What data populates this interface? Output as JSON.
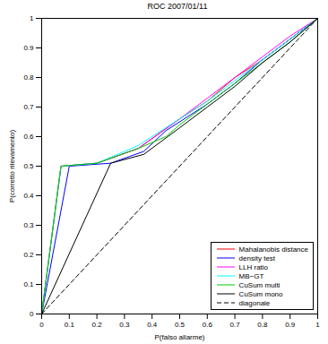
{
  "chart_data": {
    "type": "line",
    "title": "ROC 2007/01/11",
    "x_label": "P(falso allarme)",
    "y_label": "P(corretto rilevamento)",
    "xlim": [
      0,
      1
    ],
    "ylim": [
      0,
      1
    ],
    "xticks": [
      0,
      0.1,
      0.2,
      0.3,
      0.4,
      0.5,
      0.6,
      0.7,
      0.8,
      0.9,
      1
    ],
    "yticks": [
      0,
      0.1,
      0.2,
      0.3,
      0.4,
      0.5,
      0.6,
      0.7,
      0.8,
      0.9,
      1
    ],
    "grid": false,
    "legend": "bottom-right",
    "series": [
      {
        "name": "Mahalanobis distance",
        "color": "#ff0000",
        "line_style": "solid",
        "x": [
          0,
          0.07,
          0.2,
          0.35,
          0.5,
          0.6,
          0.7,
          0.8,
          0.9,
          1
        ],
        "values": [
          0,
          0.5,
          0.51,
          0.56,
          0.66,
          0.72,
          0.8,
          0.86,
          0.93,
          1
        ]
      },
      {
        "name": "density test",
        "color": "#0000ff",
        "line_style": "solid",
        "x": [
          0,
          0.1,
          0.25,
          0.37,
          0.45,
          0.6,
          0.7,
          0.8,
          0.9,
          1
        ],
        "values": [
          0,
          0.5,
          0.51,
          0.55,
          0.62,
          0.71,
          0.78,
          0.86,
          0.93,
          1
        ]
      },
      {
        "name": "LLH ratio",
        "color": "#ff00ff",
        "line_style": "solid",
        "x": [
          0,
          0.07,
          0.2,
          0.35,
          0.5,
          0.6,
          0.7,
          0.8,
          0.9,
          1
        ],
        "values": [
          0,
          0.5,
          0.51,
          0.56,
          0.66,
          0.73,
          0.8,
          0.87,
          0.94,
          1
        ]
      },
      {
        "name": "MB−GT",
        "color": "#00ffff",
        "line_style": "solid",
        "x": [
          0,
          0.07,
          0.2,
          0.35,
          0.45,
          0.6,
          0.7,
          0.8,
          0.9,
          1
        ],
        "values": [
          0,
          0.5,
          0.51,
          0.57,
          0.63,
          0.72,
          0.79,
          0.86,
          0.93,
          1
        ]
      },
      {
        "name": "CuSum multi",
        "color": "#00cc00",
        "line_style": "solid",
        "x": [
          0,
          0.07,
          0.2,
          0.35,
          0.45,
          0.5,
          0.6,
          0.7,
          0.8,
          0.9,
          1
        ],
        "values": [
          0,
          0.5,
          0.51,
          0.56,
          0.6,
          0.64,
          0.71,
          0.78,
          0.85,
          0.92,
          1
        ]
      },
      {
        "name": "CuSum mono",
        "color": "#000000",
        "line_style": "solid",
        "x": [
          0,
          0.25,
          0.37,
          0.5,
          0.6,
          0.7,
          0.8,
          0.9,
          1
        ],
        "values": [
          0,
          0.51,
          0.54,
          0.63,
          0.7,
          0.77,
          0.85,
          0.92,
          1
        ]
      },
      {
        "name": "diagonale",
        "color": "#000000",
        "line_style": "dashed",
        "x": [
          0,
          1
        ],
        "values": [
          0,
          1
        ]
      }
    ]
  }
}
